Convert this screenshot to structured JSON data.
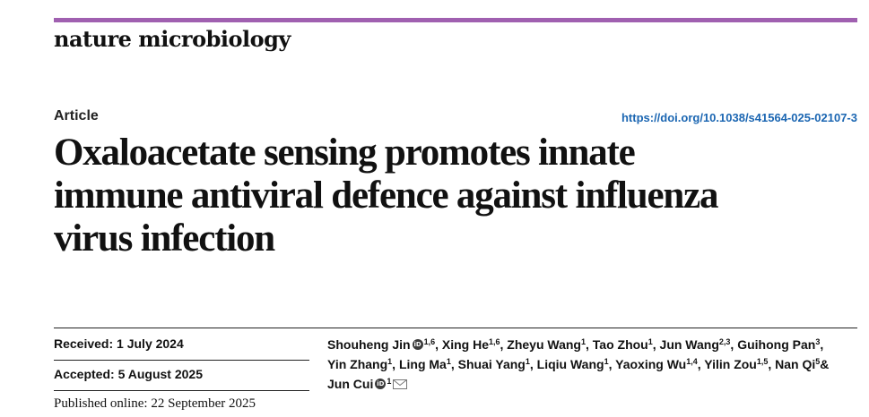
{
  "journal": "nature microbiology",
  "article_type": "Article",
  "doi": "https://doi.org/10.1038/s41564-025-02107-3",
  "title_lines": [
    "Oxaloacetate sensing promotes innate",
    "immune antiviral defence against influenza",
    "virus infection"
  ],
  "dates": {
    "received": "Received: 1 July 2024",
    "accepted": "Accepted: 5 August 2025",
    "published": "Published online: 22 September 2025"
  },
  "authors": [
    {
      "name": "Shouheng Jin",
      "aff": "1,6",
      "orcid": true
    },
    {
      "name": "Xing He",
      "aff": "1,6"
    },
    {
      "name": "Zheyu Wang",
      "aff": "1"
    },
    {
      "name": "Tao Zhou",
      "aff": "1"
    },
    {
      "name": "Jun Wang",
      "aff": "2,3"
    },
    {
      "name": "Guihong Pan",
      "aff": "3"
    },
    {
      "name": "Yin Zhang",
      "aff": "1"
    },
    {
      "name": "Ling Ma",
      "aff": "1"
    },
    {
      "name": "Shuai Yang",
      "aff": "1"
    },
    {
      "name": "Liqiu Wang",
      "aff": "1"
    },
    {
      "name": "Yaoxing Wu",
      "aff": "1,4"
    },
    {
      "name": "Yilin Zou",
      "aff": "1,5"
    },
    {
      "name": "Nan Qi",
      "aff": "5"
    },
    {
      "name": "Jun Cui",
      "aff": "1",
      "orcid": true,
      "corresponding": true
    }
  ],
  "author_separators": [
    ",",
    ",",
    ",",
    ",",
    ",",
    ",",
    ",",
    ",",
    ",",
    ",",
    ",",
    ",",
    "&",
    ""
  ],
  "icons": {
    "orcid": "orcid-icon",
    "corresponding": "envelope-icon"
  },
  "colors": {
    "accent_rule": "#a060b0",
    "doi_link": "#1b66b2"
  }
}
